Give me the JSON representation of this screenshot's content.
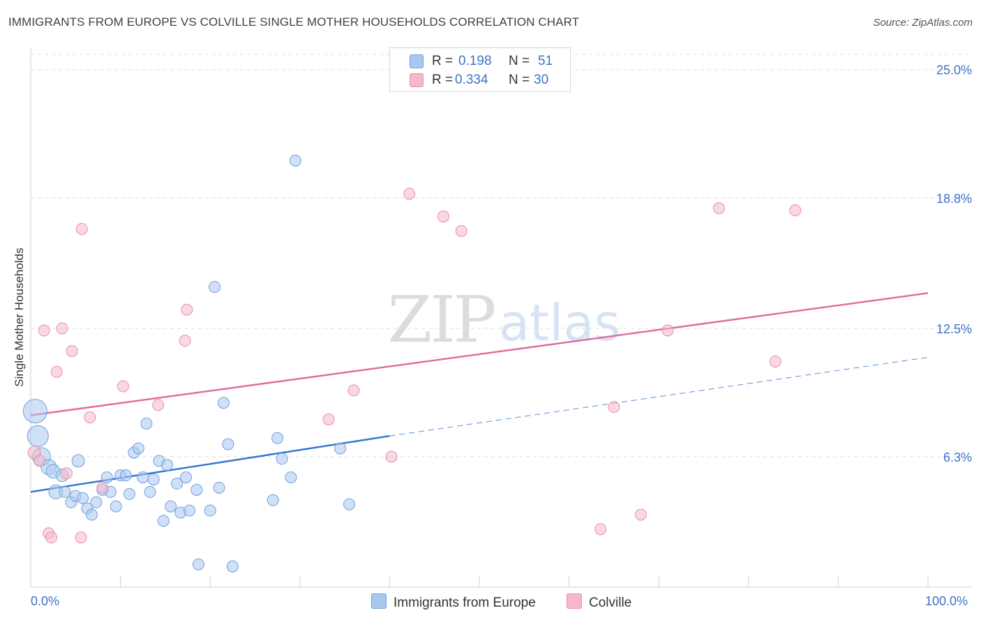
{
  "title": "IMMIGRANTS FROM EUROPE VS COLVILLE SINGLE MOTHER HOUSEHOLDS CORRELATION CHART",
  "source": "Source: ZipAtlas.com",
  "watermark": {
    "zip": "ZIP",
    "atlas": "atlas"
  },
  "legend": {
    "r_label": "R =",
    "n_label": "N =",
    "rows": [
      {
        "r": "0.198",
        "n": "51",
        "color": "#a9c8f0"
      },
      {
        "r": "0.334",
        "n": "30",
        "color": "#f6b8cb"
      }
    ]
  },
  "chart_data": {
    "type": "scatter",
    "xlabel": "",
    "ylabel": "Single Mother Households",
    "xlim": [
      0,
      100
    ],
    "ylim": [
      0,
      26
    ],
    "x_tick_labels": [
      "0.0%",
      "100.0%"
    ],
    "y_ticks": [
      6.3,
      12.5,
      18.8,
      25.0
    ],
    "y_tick_labels": [
      "6.3%",
      "12.5%",
      "18.8%",
      "25.0%"
    ],
    "grid": "horizontal dashed",
    "series": [
      {
        "name": "Immigrants from Europe",
        "color": "#a9c8f0",
        "stroke": "#6f9fdc",
        "trend_color": "#2f74cf",
        "trend": {
          "x0": 0,
          "y0": 4.6,
          "x1": 40,
          "y1": 7.3,
          "dash_to_x": 100,
          "dash_to_y": 11.1
        },
        "points": [
          [
            0.5,
            8.5,
            17
          ],
          [
            0.8,
            7.3,
            15
          ],
          [
            1.2,
            6.3,
            13
          ],
          [
            2.0,
            5.8,
            11
          ],
          [
            2.5,
            5.6,
            10
          ],
          [
            2.8,
            4.6,
            10
          ],
          [
            3.5,
            5.4,
            9
          ],
          [
            3.8,
            4.6,
            8
          ],
          [
            4.5,
            4.1,
            8
          ],
          [
            5.0,
            4.4,
            8
          ],
          [
            5.3,
            6.1,
            9
          ],
          [
            5.8,
            4.3,
            8
          ],
          [
            6.3,
            3.8,
            8
          ],
          [
            6.8,
            3.5,
            8
          ],
          [
            7.3,
            4.1,
            8
          ],
          [
            8.0,
            4.7,
            8
          ],
          [
            8.5,
            5.3,
            8
          ],
          [
            8.9,
            4.6,
            8
          ],
          [
            9.5,
            3.9,
            8
          ],
          [
            10.0,
            5.4,
            8
          ],
          [
            10.6,
            5.4,
            8
          ],
          [
            11.0,
            4.5,
            8
          ],
          [
            11.5,
            6.5,
            8
          ],
          [
            12.0,
            6.7,
            8
          ],
          [
            12.5,
            5.3,
            8
          ],
          [
            12.9,
            7.9,
            8
          ],
          [
            13.3,
            4.6,
            8
          ],
          [
            13.7,
            5.2,
            8
          ],
          [
            14.3,
            6.1,
            8
          ],
          [
            14.8,
            3.2,
            8
          ],
          [
            15.2,
            5.9,
            8
          ],
          [
            15.6,
            3.9,
            8
          ],
          [
            16.3,
            5.0,
            8
          ],
          [
            16.7,
            3.6,
            8
          ],
          [
            17.3,
            5.3,
            8
          ],
          [
            17.7,
            3.7,
            8
          ],
          [
            18.5,
            4.7,
            8
          ],
          [
            18.7,
            1.1,
            8
          ],
          [
            20.0,
            3.7,
            8
          ],
          [
            20.5,
            14.5,
            8
          ],
          [
            21.0,
            4.8,
            8
          ],
          [
            21.5,
            8.9,
            8
          ],
          [
            22.0,
            6.9,
            8
          ],
          [
            22.5,
            1.0,
            8
          ],
          [
            27.0,
            4.2,
            8
          ],
          [
            27.5,
            7.2,
            8
          ],
          [
            28.0,
            6.2,
            8
          ],
          [
            29.0,
            5.3,
            8
          ],
          [
            29.5,
            20.6,
            8
          ],
          [
            34.5,
            6.7,
            8
          ],
          [
            35.5,
            4.0,
            8
          ]
        ]
      },
      {
        "name": "Colville",
        "color": "#f6b8cb",
        "stroke": "#e78fab",
        "trend_color": "#e0699a",
        "trend": {
          "x0": 0,
          "y0": 8.3,
          "x1": 100,
          "y1": 14.2
        },
        "points": [
          [
            0.4,
            6.5,
            9
          ],
          [
            1.0,
            6.1,
            8
          ],
          [
            1.5,
            12.4,
            8
          ],
          [
            2.0,
            2.6,
            8
          ],
          [
            2.3,
            2.4,
            8
          ],
          [
            2.9,
            10.4,
            8
          ],
          [
            3.5,
            12.5,
            8
          ],
          [
            4.0,
            5.5,
            8
          ],
          [
            4.6,
            11.4,
            8
          ],
          [
            5.6,
            2.4,
            8
          ],
          [
            5.7,
            17.3,
            8
          ],
          [
            6.6,
            8.2,
            8
          ],
          [
            8.0,
            4.8,
            8
          ],
          [
            10.3,
            9.7,
            8
          ],
          [
            14.2,
            8.8,
            8
          ],
          [
            17.2,
            11.9,
            8
          ],
          [
            17.4,
            13.4,
            8
          ],
          [
            33.2,
            8.1,
            8
          ],
          [
            36.0,
            9.5,
            8
          ],
          [
            40.2,
            6.3,
            8
          ],
          [
            42.2,
            19.0,
            8
          ],
          [
            46.0,
            17.9,
            8
          ],
          [
            48.0,
            17.2,
            8
          ],
          [
            63.5,
            2.8,
            8
          ],
          [
            65.0,
            8.7,
            8
          ],
          [
            68.0,
            3.5,
            8
          ],
          [
            71.0,
            12.4,
            8
          ],
          [
            76.7,
            18.3,
            8
          ],
          [
            83.0,
            10.9,
            8
          ],
          [
            85.2,
            18.2,
            8
          ]
        ]
      }
    ]
  }
}
